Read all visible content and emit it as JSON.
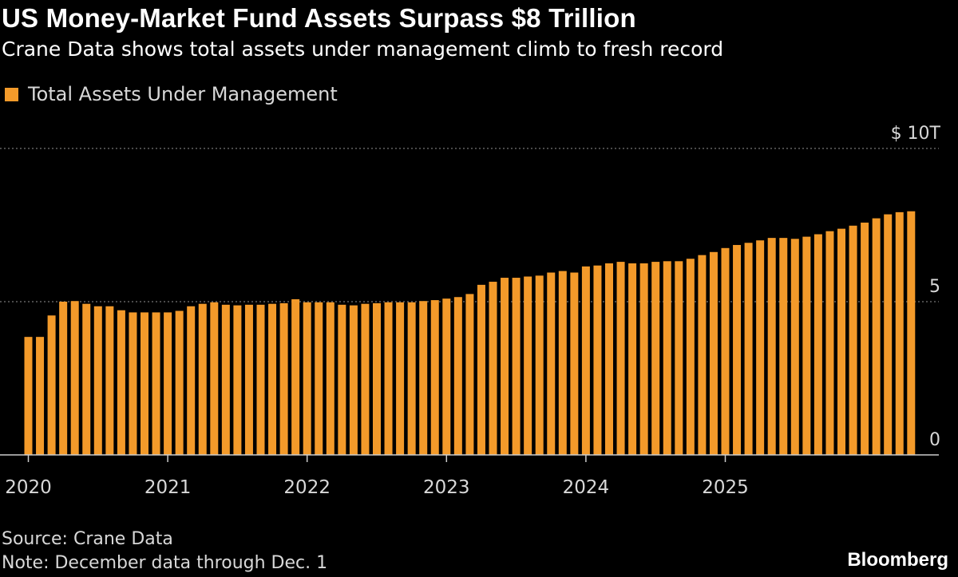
{
  "header": {
    "title": "US Money-Market Fund Assets Surpass $8 Trillion",
    "subtitle": "Crane Data shows total assets under management climb to fresh record"
  },
  "footer": {
    "source": "Source: Crane Data",
    "note": "Note: December data through Dec. 1",
    "brand": "Bloomberg"
  },
  "colors": {
    "bar": "#f39a2a",
    "background": "#000000",
    "gridline": "#777777",
    "axis": "#cccccc"
  },
  "chart_data": {
    "type": "bar",
    "title": "US Money-Market Fund Assets Surpass $8 Trillion",
    "subtitle": "Crane Data shows total assets under management climb to fresh record",
    "legend_position": "top-left",
    "grid": true,
    "ylim": [
      0,
      10
    ],
    "y_ticks": [
      {
        "value": 0,
        "label": "0"
      },
      {
        "value": 5,
        "label": "5"
      },
      {
        "value": 10,
        "label": "$ 10T"
      }
    ],
    "x_ticks": [
      "2020",
      "2021",
      "2022",
      "2023",
      "2024",
      "2025"
    ],
    "series": [
      {
        "name": "Total Assets Under Management",
        "x_start": "2020-01",
        "values": [
          3.85,
          3.85,
          4.55,
          5.0,
          5.02,
          4.93,
          4.85,
          4.85,
          4.72,
          4.65,
          4.65,
          4.65,
          4.65,
          4.7,
          4.85,
          4.93,
          4.98,
          4.9,
          4.88,
          4.9,
          4.9,
          4.93,
          4.95,
          5.08,
          4.98,
          4.98,
          4.98,
          4.9,
          4.88,
          4.93,
          4.95,
          4.98,
          4.98,
          4.98,
          5.02,
          5.05,
          5.1,
          5.15,
          5.25,
          5.55,
          5.65,
          5.78,
          5.78,
          5.82,
          5.85,
          5.95,
          6.0,
          5.95,
          6.15,
          6.18,
          6.25,
          6.3,
          6.25,
          6.25,
          6.3,
          6.32,
          6.32,
          6.4,
          6.52,
          6.62,
          6.75,
          6.85,
          6.92,
          7.0,
          7.08,
          7.08,
          7.05,
          7.12,
          7.2,
          7.3,
          7.38,
          7.48,
          7.58,
          7.72,
          7.85,
          7.92,
          7.95
        ]
      }
    ]
  }
}
